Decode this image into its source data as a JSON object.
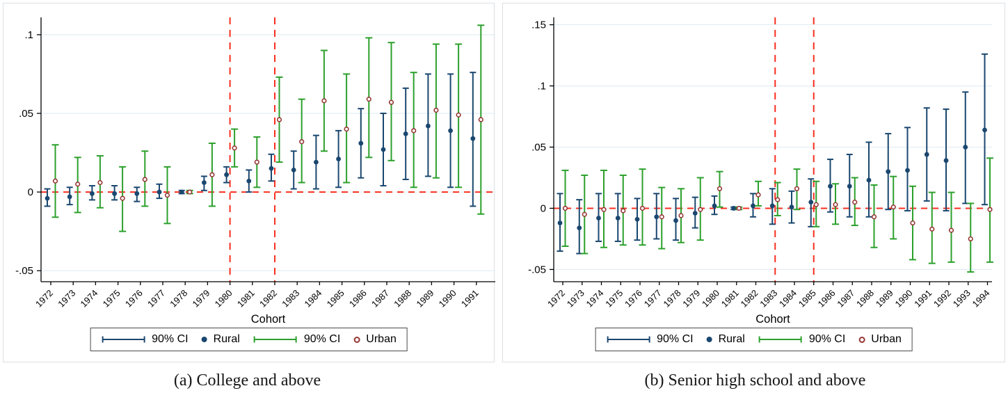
{
  "colors": {
    "rural": "#1a476f",
    "urban_marker": "#943634",
    "urban_ci": "#2ca02c",
    "reference_line": "#fa2e1e",
    "gridline": "#e2edf3",
    "axis": "#000000",
    "panel_border": "#dbe0e4"
  },
  "ui": {
    "legend_items": [
      {
        "kind": "ci_sample",
        "color_key": "rural",
        "label": "90% CI"
      },
      {
        "kind": "marker_sample",
        "color_key": "rural",
        "label": "Rural"
      },
      {
        "kind": "ci_sample",
        "color_key": "urban_ci",
        "label": "90% CI"
      },
      {
        "kind": "marker_sample",
        "color_key": "urban_marker",
        "label": "Urban"
      }
    ]
  },
  "chart_data": [
    {
      "type": "scatter",
      "title": "(a) College and above",
      "xlabel": "Cohort",
      "ylabel": "",
      "grid": true,
      "legend_position": "bottom",
      "x": [
        1972,
        1973,
        1974,
        1975,
        1976,
        1977,
        1978,
        1979,
        1980,
        1981,
        1982,
        1983,
        1984,
        1985,
        1986,
        1987,
        1988,
        1989,
        1990,
        1991
      ],
      "ylim": [
        -0.057,
        0.111
      ],
      "y_ticks": [
        -0.05,
        0,
        0.05,
        0.1
      ],
      "y_tick_labels": [
        "-.05",
        "0",
        ".05",
        ".1"
      ],
      "reference_hline": 0,
      "reference_vlines": [
        1980,
        1982
      ],
      "series": [
        {
          "name": "Rural",
          "marker": "filled_circle",
          "ci_label": "90% CI",
          "est": [
            -0.004,
            -0.003,
            -0.001,
            -0.001,
            -0.001,
            0.0,
            0.0,
            0.006,
            0.011,
            0.007,
            0.015,
            0.014,
            0.019,
            0.021,
            0.031,
            0.027,
            0.037,
            0.042,
            0.039,
            0.034
          ],
          "ci_low": [
            -0.009,
            -0.008,
            -0.005,
            -0.005,
            -0.006,
            -0.004,
            -0.001,
            0.001,
            0.006,
            0.0,
            0.007,
            0.002,
            0.002,
            0.003,
            0.009,
            0.004,
            0.008,
            0.01,
            0.003,
            -0.009
          ],
          "ci_high": [
            0.002,
            0.003,
            0.004,
            0.004,
            0.003,
            0.005,
            0.001,
            0.01,
            0.016,
            0.014,
            0.024,
            0.026,
            0.036,
            0.039,
            0.053,
            0.05,
            0.066,
            0.075,
            0.075,
            0.076
          ]
        },
        {
          "name": "Urban",
          "marker": "open_circle",
          "ci_label": "90% CI",
          "est": [
            0.007,
            0.005,
            0.006,
            -0.004,
            0.008,
            -0.002,
            0.0,
            0.011,
            0.028,
            0.019,
            0.046,
            0.032,
            0.058,
            0.04,
            0.059,
            0.057,
            0.039,
            0.052,
            0.049,
            0.046
          ],
          "ci_low": [
            -0.016,
            -0.013,
            -0.01,
            -0.025,
            -0.009,
            -0.02,
            -0.001,
            -0.009,
            0.016,
            0.003,
            0.019,
            0.006,
            0.026,
            0.006,
            0.022,
            0.02,
            0.003,
            0.009,
            0.003,
            -0.014
          ],
          "ci_high": [
            0.03,
            0.022,
            0.023,
            0.016,
            0.026,
            0.016,
            0.001,
            0.031,
            0.04,
            0.035,
            0.073,
            0.059,
            0.09,
            0.075,
            0.098,
            0.095,
            0.076,
            0.094,
            0.094,
            0.106
          ]
        }
      ]
    },
    {
      "type": "scatter",
      "title": "(b) Senior high school and above",
      "xlabel": "Cohort",
      "ylabel": "",
      "grid": true,
      "legend_position": "bottom",
      "x": [
        1972,
        1973,
        1974,
        1975,
        1976,
        1977,
        1978,
        1979,
        1980,
        1981,
        1982,
        1983,
        1984,
        1985,
        1986,
        1987,
        1988,
        1989,
        1990,
        1991,
        1992,
        1993,
        1994
      ],
      "ylim": [
        -0.06,
        0.156
      ],
      "y_ticks": [
        -0.05,
        0,
        0.05,
        0.1,
        0.15
      ],
      "y_tick_labels": [
        "-.05",
        "0",
        ".05",
        ".1",
        ".15"
      ],
      "reference_hline": 0,
      "reference_vlines": [
        1983,
        1985
      ],
      "series": [
        {
          "name": "Rural",
          "marker": "filled_circle",
          "ci_label": "90% CI",
          "est": [
            -0.012,
            -0.016,
            -0.008,
            -0.008,
            -0.009,
            -0.007,
            -0.01,
            -0.004,
            0.002,
            0.0,
            0.002,
            0.002,
            0.001,
            0.005,
            0.018,
            0.018,
            0.023,
            0.03,
            0.031,
            0.044,
            0.039,
            0.05,
            0.064
          ],
          "ci_low": [
            -0.035,
            -0.037,
            -0.027,
            -0.027,
            -0.026,
            -0.025,
            -0.026,
            -0.016,
            -0.005,
            -0.001,
            -0.007,
            -0.013,
            -0.012,
            -0.015,
            -0.003,
            -0.007,
            -0.007,
            -0.001,
            -0.002,
            0.006,
            -0.002,
            0.004,
            0.003
          ],
          "ci_high": [
            0.012,
            0.007,
            0.012,
            0.012,
            0.008,
            0.012,
            0.008,
            0.009,
            0.01,
            0.001,
            0.012,
            0.016,
            0.014,
            0.024,
            0.04,
            0.044,
            0.054,
            0.061,
            0.066,
            0.082,
            0.081,
            0.095,
            0.126
          ]
        },
        {
          "name": "Urban",
          "marker": "open_circle",
          "ci_label": "90% CI",
          "est": [
            0.0,
            -0.005,
            -0.001,
            -0.002,
            0.0,
            -0.007,
            -0.006,
            -0.001,
            0.016,
            0.0,
            0.011,
            0.007,
            0.016,
            0.003,
            0.003,
            0.005,
            -0.007,
            0.001,
            -0.012,
            -0.017,
            -0.018,
            -0.025,
            -0.001
          ],
          "ci_low": [
            -0.031,
            -0.037,
            -0.032,
            -0.03,
            -0.03,
            -0.033,
            -0.028,
            -0.026,
            0.001,
            -0.001,
            0.002,
            -0.006,
            -0.001,
            -0.015,
            -0.013,
            -0.014,
            -0.032,
            -0.025,
            -0.042,
            -0.045,
            -0.044,
            -0.052,
            -0.044
          ],
          "ci_high": [
            0.031,
            0.027,
            0.031,
            0.027,
            0.032,
            0.017,
            0.016,
            0.025,
            0.03,
            0.001,
            0.022,
            0.021,
            0.032,
            0.022,
            0.02,
            0.025,
            0.019,
            0.026,
            0.018,
            0.013,
            0.013,
            0.004,
            0.041
          ]
        }
      ]
    }
  ]
}
